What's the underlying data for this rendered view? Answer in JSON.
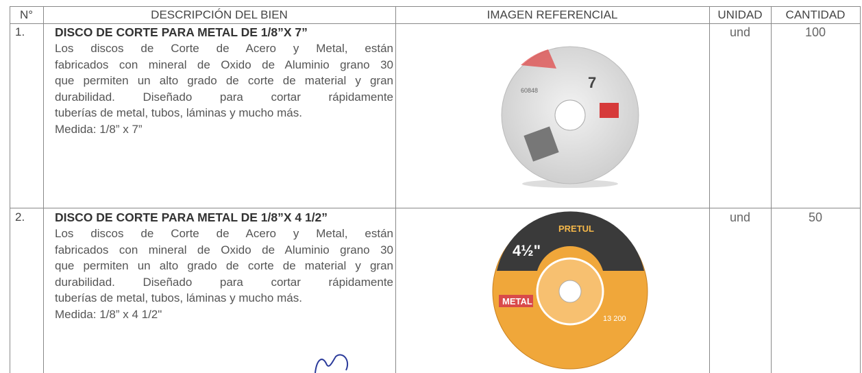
{
  "table": {
    "header": [
      "N°",
      "DESCRIPCIÓN DEL BIEN",
      "IMAGEN REFERENCIAL",
      "UNIDAD",
      "CANTIDAD"
    ],
    "rows": [
      {
        "number": "1.",
        "title": "DISCO DE CORTE PARA METAL DE 1/8”X 7”",
        "lines": [
          "Los discos de Corte de Acero y Metal, están",
          "fabricados con mineral de Oxido de Aluminio grano 30",
          "que permiten un alto grado de corte de material y gran",
          "durabilidad. Diseñado para cortar rápidamente",
          "tuberías de metal, tubos, láminas y mucho más.",
          "Medida: 1/8” x 7”"
        ],
        "image_labels": [
          "7",
          "60848"
        ],
        "unit": "und",
        "quantity": "100"
      },
      {
        "number": "2.",
        "title": "DISCO DE CORTE PARA METAL DE 1/8”X 4 1/2”",
        "lines": [
          "Los discos de Corte de Acero y Metal, están",
          "fabricados con mineral de Oxido de Aluminio grano 30",
          "que permiten un alto grado de corte de material y gran",
          "durabilidad. Diseñado para cortar rápidamente",
          "tuberías de metal, tubos, láminas y mucho más.",
          "Medida: 1/8” x 4 1/2\""
        ],
        "image_labels": [
          "PRETUL",
          "4½\"",
          "METAL",
          "13 200"
        ],
        "unit": "und",
        "quantity": "50"
      }
    ]
  }
}
